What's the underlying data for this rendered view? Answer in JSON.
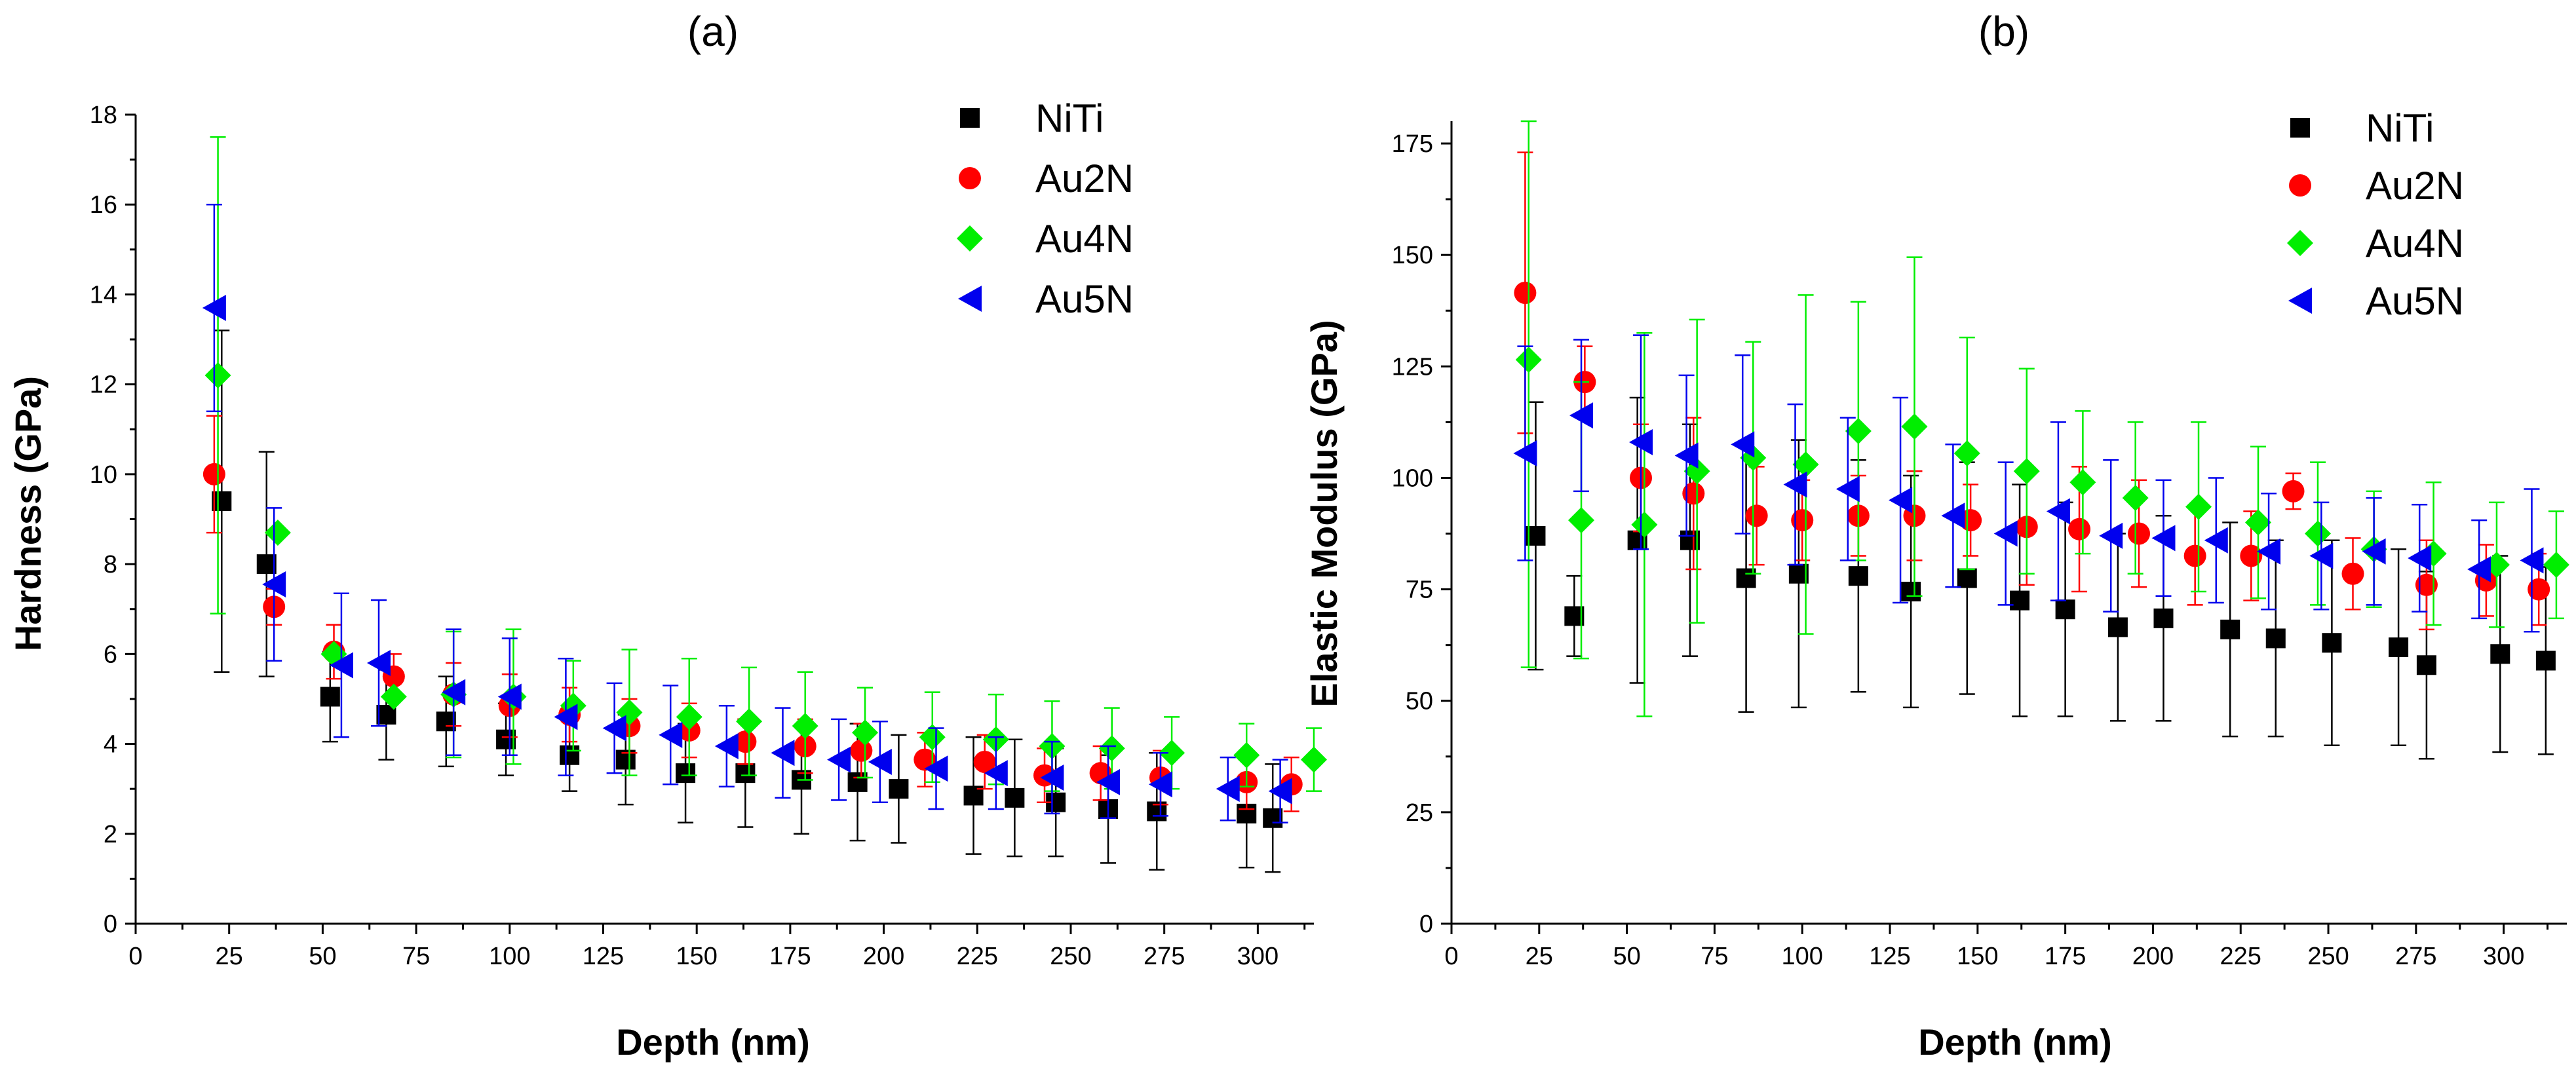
{
  "chart_data": [
    {
      "type": "scatter",
      "panel_label": "(a)",
      "xlabel": "Depth (nm)",
      "ylabel": "Hardness (GPa)",
      "xlim": [
        0,
        315
      ],
      "ylim": [
        0,
        18
      ],
      "xticks": [
        "0",
        "25",
        "50",
        "75",
        "100",
        "125",
        "150",
        "175",
        "200",
        "225",
        "250",
        "275",
        "300"
      ],
      "yticks": [
        "0",
        "2",
        "4",
        "6",
        "8",
        "10",
        "12",
        "14",
        "16",
        "18"
      ],
      "legend_position": "top-right",
      "series": [
        {
          "name": "NiTi",
          "color": "#000000",
          "marker": "square",
          "x": [
            23,
            35,
            52,
            67,
            83,
            99,
            116,
            131,
            147,
            163,
            178,
            193,
            204,
            224,
            235,
            246,
            260,
            273,
            297,
            304
          ],
          "y": [
            9.4,
            8.0,
            5.05,
            4.65,
            4.5,
            4.1,
            3.75,
            3.65,
            3.35,
            3.35,
            3.2,
            3.15,
            3.0,
            2.85,
            2.8,
            2.7,
            2.55,
            2.5,
            2.45,
            2.35
          ],
          "err": [
            3.8,
            2.5,
            1.0,
            1.0,
            1.0,
            0.8,
            0.8,
            1.0,
            1.1,
            1.2,
            1.2,
            1.3,
            1.2,
            1.3,
            1.3,
            1.2,
            1.2,
            1.3,
            1.2,
            1.2
          ]
        },
        {
          "name": "Au2N",
          "color": "#ff0000",
          "marker": "circle",
          "x": [
            21,
            37,
            53,
            69,
            85,
            100,
            116,
            132,
            148,
            163,
            179,
            194,
            211,
            227,
            243,
            258,
            274,
            297,
            309
          ],
          "y": [
            10.0,
            7.05,
            6.05,
            5.5,
            5.1,
            4.85,
            4.65,
            4.4,
            4.3,
            4.05,
            3.95,
            3.85,
            3.65,
            3.6,
            3.3,
            3.35,
            3.25,
            3.15,
            3.1
          ],
          "err": [
            1.3,
            0.4,
            0.6,
            0.5,
            0.7,
            0.7,
            0.6,
            0.6,
            0.6,
            0.5,
            0.6,
            0.6,
            0.6,
            0.6,
            0.6,
            0.6,
            0.6,
            0.6,
            0.6
          ]
        },
        {
          "name": "Au4N",
          "color": "#00ee00",
          "marker": "diamond",
          "x": [
            22,
            38,
            53,
            69,
            85,
            101,
            117,
            132,
            148,
            164,
            179,
            195,
            213,
            230,
            245,
            261,
            277,
            297,
            315
          ],
          "y": [
            12.2,
            8.7,
            6.0,
            5.05,
            5.1,
            5.05,
            4.85,
            4.7,
            4.6,
            4.5,
            4.4,
            4.25,
            4.15,
            4.1,
            3.95,
            3.9,
            3.8,
            3.75,
            3.65
          ],
          "err": [
            5.3,
            0,
            0,
            0,
            1.4,
            1.5,
            1.0,
            1.4,
            1.3,
            1.2,
            1.2,
            1.0,
            1.0,
            1.0,
            1.0,
            0.9,
            0.8,
            0.7,
            0.7
          ]
        },
        {
          "name": "Au5N",
          "color": "#0000ee",
          "marker": "triangle-left",
          "x": [
            21,
            37,
            55,
            65,
            85,
            100,
            115,
            128,
            143,
            158,
            173,
            188,
            199,
            214,
            230,
            245,
            260,
            274,
            292,
            306
          ],
          "y": [
            13.7,
            7.55,
            5.75,
            5.8,
            5.15,
            5.05,
            4.6,
            4.35,
            4.2,
            3.95,
            3.8,
            3.65,
            3.6,
            3.45,
            3.35,
            3.25,
            3.15,
            3.1,
            3.0,
            2.95
          ],
          "err": [
            2.3,
            1.7,
            1.6,
            1.4,
            1.4,
            1.3,
            1.3,
            1.0,
            1.1,
            0.9,
            1.0,
            0.9,
            0.9,
            0.9,
            0.8,
            0.8,
            0.8,
            0.7,
            0.7,
            0.7
          ]
        }
      ]
    },
    {
      "type": "scatter",
      "panel_label": "(b)",
      "xlabel": "Depth (nm)",
      "ylabel": "Elastic Modulus (GPa)",
      "xlim": [
        0,
        318
      ],
      "ylim": [
        0,
        180
      ],
      "xticks": [
        "0",
        "25",
        "50",
        "75",
        "100",
        "125",
        "150",
        "175",
        "200",
        "225",
        "250",
        "275",
        "300"
      ],
      "yticks": [
        "0",
        "25",
        "50",
        "75",
        "100",
        "125",
        "150",
        "175"
      ],
      "legend_position": "top-right",
      "series": [
        {
          "name": "NiTi",
          "color": "#000000",
          "marker": "square",
          "x": [
            24,
            35,
            53,
            68,
            84,
            99,
            116,
            131,
            147,
            162,
            175,
            190,
            203,
            222,
            235,
            251,
            270,
            278,
            299,
            312
          ],
          "y": [
            87,
            69,
            86,
            86,
            77.5,
            78.5,
            78,
            74.5,
            77.5,
            72.5,
            70.5,
            66.5,
            68.5,
            66,
            64,
            63,
            62,
            58,
            60.5,
            59
          ],
          "err": [
            30,
            9,
            32,
            26,
            30,
            30,
            26,
            26,
            26,
            26,
            24,
            21,
            23,
            24,
            22,
            23,
            22,
            21,
            22,
            21
          ]
        },
        {
          "name": "Au2N",
          "color": "#ff0000",
          "marker": "circle",
          "x": [
            21,
            38,
            54,
            69,
            87,
            100,
            116,
            132,
            148,
            164,
            179,
            196,
            212,
            228,
            240,
            257,
            278,
            295,
            310
          ],
          "y": [
            141.5,
            121.5,
            100,
            96.5,
            91.5,
            90.5,
            91.5,
            91.5,
            90.5,
            89,
            88.5,
            87.5,
            82.5,
            82.5,
            97,
            78.5,
            76,
            77,
            75
          ],
          "err": [
            31.5,
            8,
            12,
            17,
            11,
            9,
            9,
            10,
            8,
            13,
            14,
            12,
            11,
            10,
            4,
            8,
            10,
            8,
            8
          ]
        },
        {
          "name": "Au4N",
          "color": "#00ee00",
          "marker": "diamond",
          "x": [
            22,
            37,
            55,
            70,
            86,
            101,
            116,
            132,
            147,
            164,
            180,
            195,
            213,
            230,
            247,
            263,
            280,
            298,
            315
          ],
          "y": [
            126.5,
            90.5,
            89.5,
            101.5,
            104.5,
            103,
            110.5,
            111.5,
            105.5,
            101.5,
            99,
            95.5,
            93.5,
            90,
            87.5,
            84,
            83,
            80.5,
            80.5
          ],
          "err": [
            69,
            31,
            43,
            34,
            26,
            38,
            29,
            38,
            26,
            23,
            16,
            17,
            19,
            17,
            16,
            13,
            16,
            14,
            12
          ]
        },
        {
          "name": "Au5N",
          "color": "#0000ee",
          "marker": "triangle-left",
          "x": [
            21,
            37,
            54,
            67,
            83,
            98,
            113,
            128,
            143,
            158,
            173,
            188,
            203,
            218,
            233,
            248,
            263,
            276,
            293,
            308
          ],
          "y": [
            105.5,
            114,
            108,
            105,
            107.5,
            98.5,
            97.5,
            95,
            91.5,
            87.5,
            92.5,
            87,
            86.5,
            86,
            83.5,
            82.5,
            83.5,
            82,
            79.5,
            81.5
          ],
          "err": [
            24,
            17,
            24,
            18,
            20,
            18,
            16,
            23,
            16,
            16,
            20,
            17,
            13,
            14,
            13,
            12,
            12,
            12,
            11,
            16
          ]
        }
      ]
    }
  ]
}
